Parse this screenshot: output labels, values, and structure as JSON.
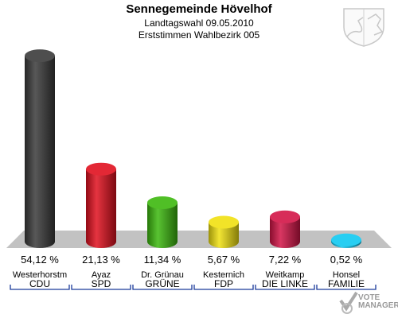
{
  "header": {
    "title": "Sennegemeinde Hövelhof",
    "subtitle": "Landtagswahl 09.05.2010",
    "subtitle2": "Erststimmen Wahlbezirk 005"
  },
  "logo": {
    "line1": "VOTE",
    "line2": "MANAGER"
  },
  "chart_data": {
    "type": "bar",
    "title": "Sennegemeinde Hövelhof",
    "ylim": [
      0,
      56
    ],
    "categories": [
      "CDU",
      "SPD",
      "GRÜNE",
      "FDP",
      "DIE LINKE",
      "FAMILIE"
    ],
    "candidates": [
      "Westerhorstm",
      "Ayaz",
      "Dr. Grünau",
      "Kesternich",
      "Weitkamp",
      "Honsel"
    ],
    "values": [
      54.12,
      21.13,
      11.34,
      5.67,
      7.22,
      0.52
    ],
    "labels": [
      "54,12 %",
      "21,13 %",
      "11,34 %",
      "5,67 %",
      "7,22 %",
      "0,52 %"
    ],
    "colors": [
      "#3a3a3a",
      "#e0101e",
      "#3cb80e",
      "#f0e010",
      "#d21446",
      "#10c8f0"
    ]
  }
}
